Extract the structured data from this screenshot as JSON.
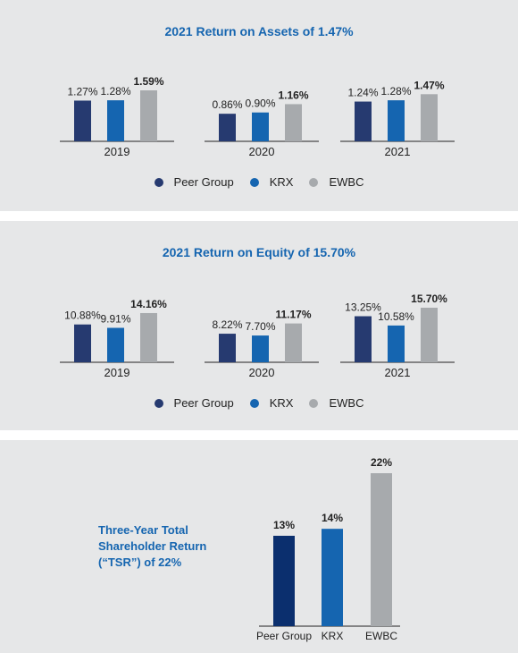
{
  "colors": {
    "peer_group": "#263a70",
    "krx": "#1565b0",
    "ewbc": "#a7aaad",
    "tsr_peer_group": "#0b2f6e"
  },
  "legend": [
    {
      "label": "Peer Group",
      "color": "#263a70"
    },
    {
      "label": "KRX",
      "color": "#1565b0"
    },
    {
      "label": "EWBC",
      "color": "#a7aaad"
    }
  ],
  "roa": {
    "title": "2021 Return on Assets of 1.47%"
  },
  "roe": {
    "title": "2021 Return on Equity of 15.70%"
  },
  "tsr": {
    "title_lines": [
      "Three-Year Total",
      "Shareholder Return",
      "(“TSR”) of 22%"
    ]
  },
  "chart_data": [
    {
      "type": "bar",
      "title": "2021 Return on Assets of 1.47%",
      "categories": [
        "2019",
        "2020",
        "2021"
      ],
      "series": [
        {
          "name": "Peer Group",
          "values": [
            1.27,
            0.86,
            1.24
          ],
          "labels": [
            "1.27%",
            "0.86%",
            "1.24%"
          ]
        },
        {
          "name": "KRX",
          "values": [
            1.28,
            0.9,
            1.28
          ],
          "labels": [
            "1.28%",
            "0.90%",
            "1.28%"
          ]
        },
        {
          "name": "EWBC",
          "values": [
            1.59,
            1.16,
            1.47
          ],
          "labels": [
            "1.59%",
            "1.16%",
            "1.47%"
          ],
          "bold_labels": true
        }
      ],
      "ylim": [
        0,
        1.59
      ],
      "legend_position": "bottom"
    },
    {
      "type": "bar",
      "title": "2021 Return on Equity of 15.70%",
      "categories": [
        "2019",
        "2020",
        "2021"
      ],
      "series": [
        {
          "name": "Peer Group",
          "values": [
            10.88,
            8.22,
            13.25
          ],
          "labels": [
            "10.88%",
            "8.22%",
            "13.25%"
          ]
        },
        {
          "name": "KRX",
          "values": [
            9.91,
            7.7,
            10.58
          ],
          "labels": [
            "9.91%",
            "7.70%",
            "10.58%"
          ]
        },
        {
          "name": "EWBC",
          "values": [
            14.16,
            11.17,
            15.7
          ],
          "labels": [
            "14.16%",
            "11.17%",
            "15.70%"
          ],
          "bold_labels": true
        }
      ],
      "ylim": [
        0,
        15.7
      ],
      "legend_position": "bottom"
    },
    {
      "type": "bar",
      "title": "Three-Year Total Shareholder Return (“TSR”) of 22%",
      "categories": [
        "Peer Group",
        "KRX",
        "EWBC"
      ],
      "values": [
        13,
        14,
        22
      ],
      "labels": [
        "13%",
        "14%",
        "22%"
      ],
      "ylim": [
        0,
        22
      ]
    }
  ]
}
